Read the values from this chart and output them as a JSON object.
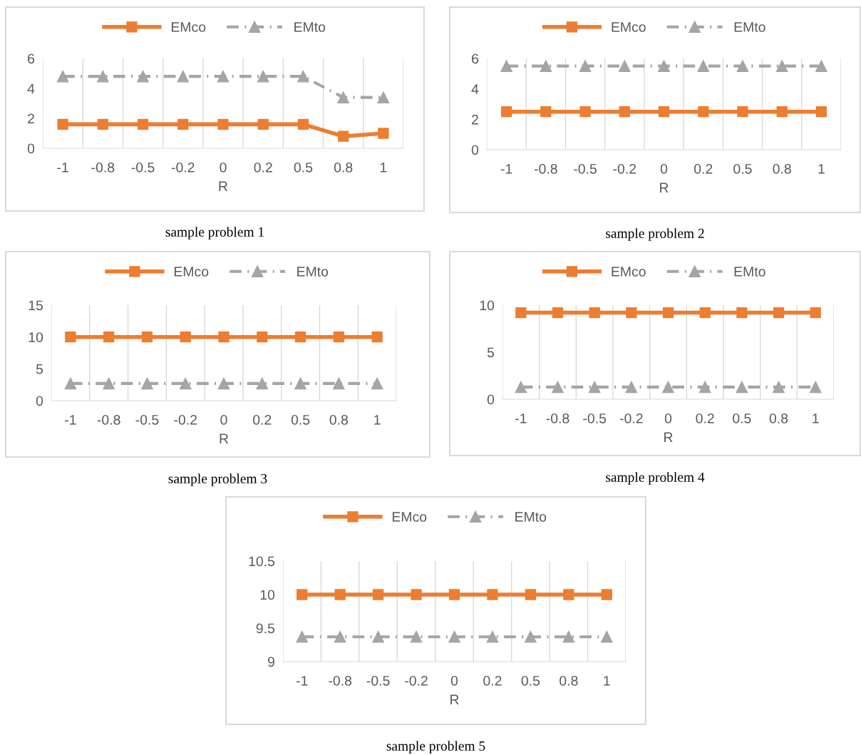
{
  "chart_data": [
    {
      "type": "line",
      "categories": [
        "-1",
        "-0.8",
        "-0.5",
        "-0.2",
        "0",
        "0.2",
        "0.5",
        "0.8",
        "1"
      ],
      "xlabel": "R",
      "ylim": [
        0,
        6
      ],
      "yticks": [
        0,
        2,
        4,
        6
      ],
      "grid": "x",
      "legend": "top",
      "annotations": [
        "sample problem 1"
      ],
      "series": [
        {
          "name": "EMco",
          "color": "#ed7d31",
          "marker": "square",
          "line_style": "solid",
          "values": [
            1.6,
            1.6,
            1.6,
            1.6,
            1.6,
            1.6,
            1.6,
            0.8,
            1.0
          ]
        },
        {
          "name": "EMto",
          "color": "#a5a5a5",
          "marker": "triangle",
          "line_style": "dashed",
          "values": [
            4.8,
            4.8,
            4.8,
            4.8,
            4.8,
            4.8,
            4.8,
            3.4,
            3.4
          ]
        }
      ]
    },
    {
      "type": "line",
      "categories": [
        "-1",
        "-0.8",
        "-0.5",
        "-0.2",
        "0",
        "0.2",
        "0.5",
        "0.8",
        "1"
      ],
      "xlabel": "R",
      "ylim": [
        0,
        6
      ],
      "yticks": [
        0,
        2,
        4,
        6
      ],
      "grid": "x",
      "legend": "top",
      "annotations": [
        "sample problem 2"
      ],
      "series": [
        {
          "name": "EMco",
          "color": "#ed7d31",
          "marker": "square",
          "line_style": "solid",
          "values": [
            2.5,
            2.5,
            2.5,
            2.5,
            2.5,
            2.5,
            2.5,
            2.5,
            2.5
          ]
        },
        {
          "name": "EMto",
          "color": "#a5a5a5",
          "marker": "triangle",
          "line_style": "dashed",
          "values": [
            5.5,
            5.5,
            5.5,
            5.5,
            5.5,
            5.5,
            5.5,
            5.5,
            5.5
          ]
        }
      ]
    },
    {
      "type": "line",
      "categories": [
        "-1",
        "-0.8",
        "-0.5",
        "-0.2",
        "0",
        "0.2",
        "0.5",
        "0.8",
        "1"
      ],
      "xlabel": "R",
      "ylim": [
        0,
        15
      ],
      "yticks": [
        0,
        5,
        10,
        15
      ],
      "grid": "x",
      "legend": "top",
      "annotations": [
        "sample problem 3"
      ],
      "series": [
        {
          "name": "EMco",
          "color": "#ed7d31",
          "marker": "square",
          "line_style": "solid",
          "values": [
            10,
            10,
            10,
            10,
            10,
            10,
            10,
            10,
            10
          ]
        },
        {
          "name": "EMto",
          "color": "#a5a5a5",
          "marker": "triangle",
          "line_style": "dashed",
          "values": [
            2.7,
            2.7,
            2.7,
            2.7,
            2.7,
            2.7,
            2.7,
            2.7,
            2.7
          ]
        }
      ]
    },
    {
      "type": "line",
      "categories": [
        "-1",
        "-0.8",
        "-0.5",
        "-0.2",
        "0",
        "0.2",
        "0.5",
        "0.8",
        "1"
      ],
      "xlabel": "R",
      "ylim": [
        0,
        10
      ],
      "yticks": [
        0,
        5,
        10
      ],
      "grid": "x",
      "legend": "top",
      "annotations": [
        "sample problem 4"
      ],
      "series": [
        {
          "name": "EMco",
          "color": "#ed7d31",
          "marker": "square",
          "line_style": "solid",
          "values": [
            9.2,
            9.2,
            9.2,
            9.2,
            9.2,
            9.2,
            9.2,
            9.2,
            9.2
          ]
        },
        {
          "name": "EMto",
          "color": "#a5a5a5",
          "marker": "triangle",
          "line_style": "dashed",
          "values": [
            1.3,
            1.3,
            1.3,
            1.3,
            1.3,
            1.3,
            1.3,
            1.3,
            1.3
          ]
        }
      ]
    },
    {
      "type": "line",
      "categories": [
        "-1",
        "-0.8",
        "-0.5",
        "-0.2",
        "0",
        "0.2",
        "0.5",
        "0.8",
        "1"
      ],
      "xlabel": "R",
      "ylim": [
        9,
        10.5
      ],
      "yticks": [
        9,
        9.5,
        10,
        10.5
      ],
      "grid": "x",
      "legend": "top",
      "annotations": [
        "sample problem 5"
      ],
      "series": [
        {
          "name": "EMco",
          "color": "#ed7d31",
          "marker": "square",
          "line_style": "solid",
          "values": [
            10,
            10,
            10,
            10,
            10,
            10,
            10,
            10,
            10
          ]
        },
        {
          "name": "EMto",
          "color": "#a5a5a5",
          "marker": "triangle",
          "line_style": "dashed",
          "values": [
            9.37,
            9.37,
            9.37,
            9.37,
            9.37,
            9.37,
            9.37,
            9.37,
            9.37
          ]
        }
      ]
    }
  ]
}
